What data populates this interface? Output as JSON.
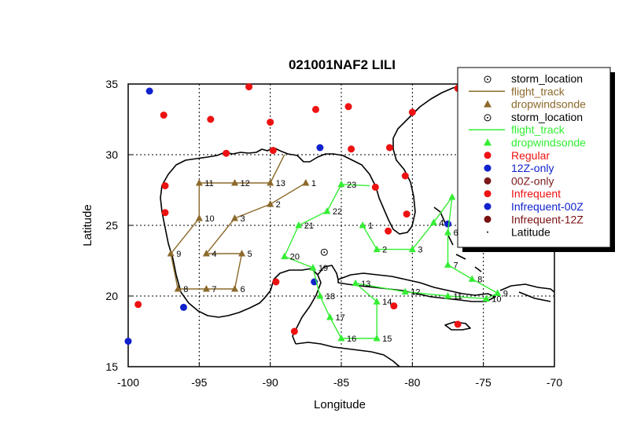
{
  "title": "021001NAF2 LILI",
  "xlabel": "Longitude",
  "ylabel": "Latitude",
  "colors": {
    "flight1": "#8c6a2b",
    "flight2": "#33ee33",
    "regular": "#ee1111",
    "z12": "#1122cc",
    "z00": "#7a1a1a",
    "infrequent": "#ee1111",
    "infrequent00": "#1122cc",
    "infrequent12": "#7a1010"
  },
  "legend": [
    {
      "label": "storm_location",
      "marker": "storm-circle",
      "color": "#000000"
    },
    {
      "label": "flight_track",
      "marker": "line",
      "color": "#8c6a2b"
    },
    {
      "label": "dropwindsonde",
      "marker": "triangle",
      "color": "#8c6a2b"
    },
    {
      "label": "storm_location",
      "marker": "storm-circle",
      "color": "#000000"
    },
    {
      "label": "flight_track",
      "marker": "line",
      "color": "#33ee33"
    },
    {
      "label": "dropwindsonde",
      "marker": "triangle",
      "color": "#33ee33"
    },
    {
      "label": "Regular",
      "marker": "dot",
      "color": "#ee1111"
    },
    {
      "label": "12Z-only",
      "marker": "dot",
      "color": "#1122cc"
    },
    {
      "label": "00Z-only",
      "marker": "dot",
      "color": "#7a1a1a"
    },
    {
      "label": "Infrequent",
      "marker": "dot",
      "color": "#ee1111"
    },
    {
      "label": "Infrequent-00Z",
      "marker": "dot",
      "color": "#1122cc"
    },
    {
      "label": "Infrequent-12Z",
      "marker": "dot",
      "color": "#7a1010"
    },
    {
      "label": "Latitude",
      "marker": "point",
      "color": "#000000"
    }
  ],
  "chart_data": {
    "type": "scatter",
    "title": "021001NAF2 LILI",
    "xlabel": "Longitude",
    "ylabel": "Latitude",
    "xlim": [
      -100,
      -70
    ],
    "ylim": [
      15,
      35
    ],
    "xticks": [
      -100,
      -95,
      -90,
      -85,
      -80,
      -75,
      -70
    ],
    "yticks": [
      15,
      20,
      25,
      30,
      35
    ],
    "xtick_labels": [
      "-100",
      "-95",
      "-90",
      "-85",
      "-80",
      "-75",
      "-70"
    ],
    "ytick_labels": [
      "15",
      "20",
      "25",
      "30",
      "35"
    ],
    "grid": true,
    "legend_position": "top-right",
    "storm_location": [
      {
        "lon": -86.2,
        "lat": 23.1,
        "label": "storm_location"
      }
    ],
    "flight_tracks": [
      {
        "label": "flight_track",
        "color": "#8c6a2b",
        "points": [
          {
            "id": "1",
            "lon": -87.5,
            "lat": 28.0
          },
          {
            "id": "2",
            "lon": -90.0,
            "lat": 26.5
          },
          {
            "id": "3",
            "lon": -92.5,
            "lat": 25.5
          },
          {
            "id": "4",
            "lon": -94.5,
            "lat": 23.0
          },
          {
            "id": "5",
            "lon": -92.0,
            "lat": 23.0
          },
          {
            "id": "6",
            "lon": -92.5,
            "lat": 20.5
          },
          {
            "id": "7",
            "lon": -94.5,
            "lat": 20.5
          },
          {
            "id": "8",
            "lon": -96.5,
            "lat": 20.5
          },
          {
            "id": "9",
            "lon": -97.0,
            "lat": 23.0
          },
          {
            "id": "10",
            "lon": -95.0,
            "lat": 25.5
          },
          {
            "id": "11",
            "lon": -95.0,
            "lat": 28.0
          },
          {
            "id": "12",
            "lon": -92.5,
            "lat": 28.0
          },
          {
            "id": "13",
            "lon": -90.0,
            "lat": 28.0
          },
          {
            "id": "",
            "lon": -89.0,
            "lat": 30.0
          }
        ],
        "path_order": [
          "",
          "13",
          "12",
          "11",
          "10",
          "9",
          "8",
          "7",
          "6",
          "5",
          "4",
          "3",
          "2",
          "1"
        ]
      },
      {
        "label": "flight_track",
        "color": "#33ee33",
        "points": [
          {
            "id": "1",
            "lon": -83.5,
            "lat": 25.0
          },
          {
            "id": "2",
            "lon": -82.5,
            "lat": 23.3
          },
          {
            "id": "3",
            "lon": -80.0,
            "lat": 23.3
          },
          {
            "id": "4",
            "lon": -78.5,
            "lat": 25.2
          },
          {
            "id": "5",
            "lon": -77.2,
            "lat": 27.0
          },
          {
            "id": "6",
            "lon": -77.5,
            "lat": 24.5
          },
          {
            "id": "7",
            "lon": -77.5,
            "lat": 22.2
          },
          {
            "id": "8",
            "lon": -75.8,
            "lat": 21.2
          },
          {
            "id": "9",
            "lon": -74.0,
            "lat": 20.2
          },
          {
            "id": "10",
            "lon": -74.8,
            "lat": 19.8
          },
          {
            "id": "11",
            "lon": -77.5,
            "lat": 20.0
          },
          {
            "id": "12",
            "lon": -80.5,
            "lat": 20.3
          },
          {
            "id": "13",
            "lon": -84.0,
            "lat": 20.9
          },
          {
            "id": "14",
            "lon": -82.5,
            "lat": 19.6
          },
          {
            "id": "15",
            "lon": -82.5,
            "lat": 17.0
          },
          {
            "id": "16",
            "lon": -85.0,
            "lat": 17.0
          },
          {
            "id": "17",
            "lon": -85.8,
            "lat": 18.5
          },
          {
            "id": "18",
            "lon": -86.5,
            "lat": 20.0
          },
          {
            "id": "19",
            "lon": -87.0,
            "lat": 22.0
          },
          {
            "id": "20",
            "lon": -89.0,
            "lat": 22.8
          },
          {
            "id": "21",
            "lon": -88.0,
            "lat": 25.0
          },
          {
            "id": "22",
            "lon": -86.0,
            "lat": 26.0
          },
          {
            "id": "23",
            "lon": -85.0,
            "lat": 27.9
          },
          {
            "id": "",
            "lon": -83.0,
            "lat": 27.8
          }
        ],
        "path_order": [
          "",
          "23",
          "22",
          "21",
          "20",
          "19",
          "18",
          "17",
          "16",
          "15",
          "14",
          "13",
          "12",
          "11",
          "10",
          "9",
          "8",
          "7",
          "6",
          "5",
          "4",
          "3",
          "2",
          "1"
        ]
      }
    ],
    "stations": [
      {
        "lon": -98.5,
        "lat": 34.5,
        "type": "12Z-only",
        "color": "#1122cc"
      },
      {
        "lon": -91.5,
        "lat": 34.8,
        "type": "Regular",
        "color": "#ee1111"
      },
      {
        "lon": -97.5,
        "lat": 32.8,
        "type": "Regular",
        "color": "#ee1111"
      },
      {
        "lon": -94.2,
        "lat": 32.5,
        "type": "Regular",
        "color": "#ee1111"
      },
      {
        "lon": -90.0,
        "lat": 32.3,
        "type": "Regular",
        "color": "#ee1111"
      },
      {
        "lon": -86.8,
        "lat": 33.2,
        "type": "Regular",
        "color": "#ee1111"
      },
      {
        "lon": -84.5,
        "lat": 33.4,
        "type": "Regular",
        "color": "#ee1111"
      },
      {
        "lon": -80.0,
        "lat": 33.0,
        "type": "Regular",
        "color": "#ee1111"
      },
      {
        "lon": -76.8,
        "lat": 34.7,
        "type": "Regular",
        "color": "#ee1111"
      },
      {
        "lon": -93.1,
        "lat": 30.1,
        "type": "Regular",
        "color": "#ee1111"
      },
      {
        "lon": -89.8,
        "lat": 30.3,
        "type": "Regular",
        "color": "#ee1111"
      },
      {
        "lon": -86.5,
        "lat": 30.5,
        "type": "12Z-only",
        "color": "#1122cc"
      },
      {
        "lon": -84.3,
        "lat": 30.4,
        "type": "Regular",
        "color": "#ee1111"
      },
      {
        "lon": -81.6,
        "lat": 30.5,
        "type": "Regular",
        "color": "#ee1111"
      },
      {
        "lon": -80.5,
        "lat": 28.5,
        "type": "Regular",
        "color": "#ee1111"
      },
      {
        "lon": -82.6,
        "lat": 27.7,
        "type": "Regular",
        "color": "#ee1111"
      },
      {
        "lon": -97.4,
        "lat": 27.8,
        "type": "Regular",
        "color": "#ee1111"
      },
      {
        "lon": -97.4,
        "lat": 25.9,
        "type": "Regular",
        "color": "#ee1111"
      },
      {
        "lon": -80.4,
        "lat": 25.8,
        "type": "Regular",
        "color": "#ee1111"
      },
      {
        "lon": -81.7,
        "lat": 24.6,
        "type": "Regular",
        "color": "#ee1111"
      },
      {
        "lon": -77.5,
        "lat": 25.1,
        "type": "12Z-only",
        "color": "#1122cc"
      },
      {
        "lon": -89.6,
        "lat": 21.0,
        "type": "Regular",
        "color": "#ee1111"
      },
      {
        "lon": -86.9,
        "lat": 21.0,
        "type": "12Z-only",
        "color": "#1122cc"
      },
      {
        "lon": -99.3,
        "lat": 19.4,
        "type": "Regular",
        "color": "#ee1111"
      },
      {
        "lon": -96.1,
        "lat": 19.2,
        "type": "12Z-only",
        "color": "#1122cc"
      },
      {
        "lon": -100.0,
        "lat": 16.8,
        "type": "12Z-only",
        "color": "#1122cc"
      },
      {
        "lon": -88.3,
        "lat": 17.5,
        "type": "Regular",
        "color": "#ee1111"
      },
      {
        "lon": -81.3,
        "lat": 19.3,
        "type": "Regular",
        "color": "#ee1111"
      },
      {
        "lon": -76.8,
        "lat": 18.0,
        "type": "Regular",
        "color": "#ee1111"
      }
    ]
  }
}
